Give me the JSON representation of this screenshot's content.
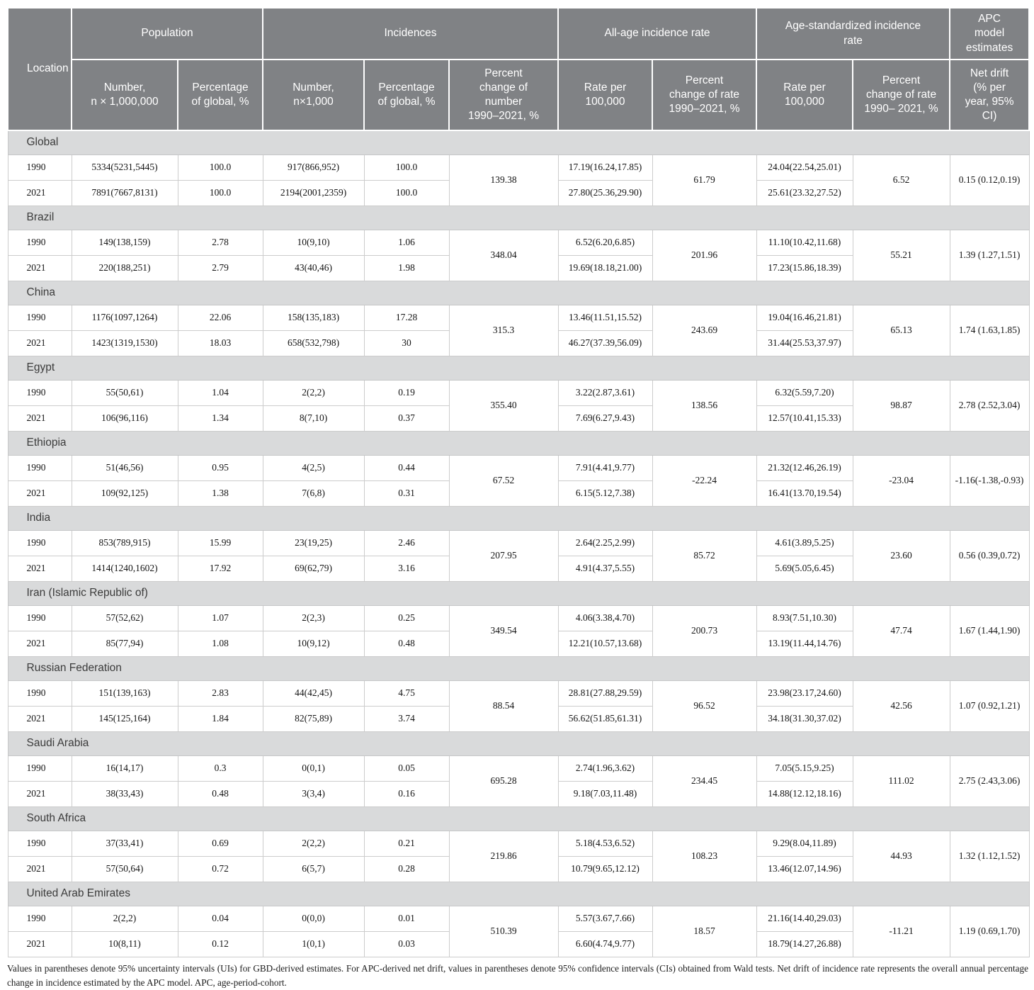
{
  "colors": {
    "header_bg": "#808285",
    "section_bg": "#d9dadb",
    "border": "#cccccc"
  },
  "header": {
    "location": "Location",
    "groups": {
      "population": "Population",
      "incidences": "Incidences",
      "all_age": "All-age incidence rate",
      "age_standardized": "Age-standardized incidence\nrate",
      "apc": "APC\nmodel\nestimates"
    },
    "columns": {
      "pop_number": "Number,\nn × 1,000,000",
      "pop_pct": "Percentage\nof global, %",
      "inc_number": "Number,\nn×1,000",
      "inc_pct": "Percentage\nof global, %",
      "change_number": "Percent\nchange of\nnumber\n1990–2021, %",
      "rate": "Rate per\n100,000",
      "change_rate": "Percent\nchange of rate\n1990–2021, %",
      "asr_rate": "Rate per\n100,000",
      "change_asr": "Percent\nchange of rate\n1990– 2021, %",
      "net_drift": "Net drift\n(% per\nyear, 95%\nCI)"
    }
  },
  "sections": [
    {
      "name": "Global",
      "rows": [
        {
          "year": "1990",
          "pop": "5334(5231,5445)",
          "pop_pct": "100.0",
          "inc": "917(866,952)",
          "inc_pct": "100.0",
          "rate": "17.19(16.24,17.85)",
          "asr": "24.04(22.54,25.01)"
        },
        {
          "year": "2021",
          "pop": "7891(7667,8131)",
          "pop_pct": "100.0",
          "inc": "2194(2001,2359)",
          "inc_pct": "100.0",
          "rate": "27.80(25.36,29.90)",
          "asr": "25.61(23.32,27.52)"
        }
      ],
      "change_number": "139.38",
      "change_rate": "61.79",
      "change_asr": "6.52",
      "net_drift": "0.15 (0.12,0.19)"
    },
    {
      "name": "Brazil",
      "rows": [
        {
          "year": "1990",
          "pop": "149(138,159)",
          "pop_pct": "2.78",
          "inc": "10(9,10)",
          "inc_pct": "1.06",
          "rate": "6.52(6.20,6.85)",
          "asr": "11.10(10.42,11.68)"
        },
        {
          "year": "2021",
          "pop": "220(188,251)",
          "pop_pct": "2.79",
          "inc": "43(40,46)",
          "inc_pct": "1.98",
          "rate": "19.69(18.18,21.00)",
          "asr": "17.23(15.86,18.39)"
        }
      ],
      "change_number": "348.04",
      "change_rate": "201.96",
      "change_asr": "55.21",
      "net_drift": "1.39 (1.27,1.51)"
    },
    {
      "name": "China",
      "rows": [
        {
          "year": "1990",
          "pop": "1176(1097,1264)",
          "pop_pct": "22.06",
          "inc": "158(135,183)",
          "inc_pct": "17.28",
          "rate": "13.46(11.51,15.52)",
          "asr": "19.04(16.46,21.81)"
        },
        {
          "year": "2021",
          "pop": "1423(1319,1530)",
          "pop_pct": "18.03",
          "inc": "658(532,798)",
          "inc_pct": "30",
          "rate": "46.27(37.39,56.09)",
          "asr": "31.44(25.53,37.97)"
        }
      ],
      "change_number": "315.3",
      "change_rate": "243.69",
      "change_asr": "65.13",
      "net_drift": "1.74 (1.63,1.85)"
    },
    {
      "name": "Egypt",
      "rows": [
        {
          "year": "1990",
          "pop": "55(50,61)",
          "pop_pct": "1.04",
          "inc": "2(2,2)",
          "inc_pct": "0.19",
          "rate": "3.22(2.87,3.61)",
          "asr": "6.32(5.59,7.20)"
        },
        {
          "year": "2021",
          "pop": "106(96,116)",
          "pop_pct": "1.34",
          "inc": "8(7,10)",
          "inc_pct": "0.37",
          "rate": "7.69(6.27,9.43)",
          "asr": "12.57(10.41,15.33)"
        }
      ],
      "change_number": "355.40",
      "change_rate": "138.56",
      "change_asr": "98.87",
      "net_drift": "2.78 (2.52,3.04)"
    },
    {
      "name": "Ethiopia",
      "rows": [
        {
          "year": "1990",
          "pop": "51(46,56)",
          "pop_pct": "0.95",
          "inc": "4(2,5)",
          "inc_pct": "0.44",
          "rate": "7.91(4.41,9.77)",
          "asr": "21.32(12.46,26.19)"
        },
        {
          "year": "2021",
          "pop": "109(92,125)",
          "pop_pct": "1.38",
          "inc": "7(6,8)",
          "inc_pct": "0.31",
          "rate": "6.15(5.12,7.38)",
          "asr": "16.41(13.70,19.54)"
        }
      ],
      "change_number": "67.52",
      "change_rate": "-22.24",
      "change_asr": "-23.04",
      "net_drift": "-1.16(-1.38,-0.93)"
    },
    {
      "name": "India",
      "rows": [
        {
          "year": "1990",
          "pop": "853(789,915)",
          "pop_pct": "15.99",
          "inc": "23(19,25)",
          "inc_pct": "2.46",
          "rate": "2.64(2.25,2.99)",
          "asr": "4.61(3.89,5.25)"
        },
        {
          "year": "2021",
          "pop": "1414(1240,1602)",
          "pop_pct": "17.92",
          "inc": "69(62,79)",
          "inc_pct": "3.16",
          "rate": "4.91(4.37,5.55)",
          "asr": "5.69(5.05,6.45)"
        }
      ],
      "change_number": "207.95",
      "change_rate": "85.72",
      "change_asr": "23.60",
      "net_drift": "0.56 (0.39,0.72)"
    },
    {
      "name": "Iran (Islamic Republic of)",
      "rows": [
        {
          "year": "1990",
          "pop": "57(52,62)",
          "pop_pct": "1.07",
          "inc": "2(2,3)",
          "inc_pct": "0.25",
          "rate": "4.06(3.38,4.70)",
          "asr": "8.93(7.51,10.30)"
        },
        {
          "year": "2021",
          "pop": "85(77,94)",
          "pop_pct": "1.08",
          "inc": "10(9,12)",
          "inc_pct": "0.48",
          "rate": "12.21(10.57,13.68)",
          "asr": "13.19(11.44,14.76)"
        }
      ],
      "change_number": "349.54",
      "change_rate": "200.73",
      "change_asr": "47.74",
      "net_drift": "1.67 (1.44,1.90)"
    },
    {
      "name": "Russian Federation",
      "rows": [
        {
          "year": "1990",
          "pop": "151(139,163)",
          "pop_pct": "2.83",
          "inc": "44(42,45)",
          "inc_pct": "4.75",
          "rate": "28.81(27.88,29.59)",
          "asr": "23.98(23.17,24.60)"
        },
        {
          "year": "2021",
          "pop": "145(125,164)",
          "pop_pct": "1.84",
          "inc": "82(75,89)",
          "inc_pct": "3.74",
          "rate": "56.62(51.85,61.31)",
          "asr": "34.18(31.30,37.02)"
        }
      ],
      "change_number": "88.54",
      "change_rate": "96.52",
      "change_asr": "42.56",
      "net_drift": "1.07 (0.92,1.21)"
    },
    {
      "name": "Saudi Arabia",
      "rows": [
        {
          "year": "1990",
          "pop": "16(14,17)",
          "pop_pct": "0.3",
          "inc": "0(0,1)",
          "inc_pct": "0.05",
          "rate": "2.74(1.96,3.62)",
          "asr": "7.05(5.15,9.25)"
        },
        {
          "year": "2021",
          "pop": "38(33,43)",
          "pop_pct": "0.48",
          "inc": "3(3,4)",
          "inc_pct": "0.16",
          "rate": "9.18(7.03,11.48)",
          "asr": "14.88(12.12,18.16)"
        }
      ],
      "change_number": "695.28",
      "change_rate": "234.45",
      "change_asr": "111.02",
      "net_drift": "2.75 (2.43,3.06)"
    },
    {
      "name": "South Africa",
      "rows": [
        {
          "year": "1990",
          "pop": "37(33,41)",
          "pop_pct": "0.69",
          "inc": "2(2,2)",
          "inc_pct": "0.21",
          "rate": "5.18(4.53,6.52)",
          "asr": "9.29(8.04,11.89)"
        },
        {
          "year": "2021",
          "pop": "57(50,64)",
          "pop_pct": "0.72",
          "inc": "6(5,7)",
          "inc_pct": "0.28",
          "rate": "10.79(9.65,12.12)",
          "asr": "13.46(12.07,14.96)"
        }
      ],
      "change_number": "219.86",
      "change_rate": "108.23",
      "change_asr": "44.93",
      "net_drift": "1.32 (1.12,1.52)"
    },
    {
      "name": "United Arab Emirates",
      "rows": [
        {
          "year": "1990",
          "pop": "2(2,2)",
          "pop_pct": "0.04",
          "inc": "0(0,0)",
          "inc_pct": "0.01",
          "rate": "5.57(3.67,7.66)",
          "asr": "21.16(14.40,29.03)"
        },
        {
          "year": "2021",
          "pop": "10(8,11)",
          "pop_pct": "0.12",
          "inc": "1(0,1)",
          "inc_pct": "0.03",
          "rate": "6.60(4.74,9.77)",
          "asr": "18.79(14.27,26.88)"
        }
      ],
      "change_number": "510.39",
      "change_rate": "18.57",
      "change_asr": "-11.21",
      "net_drift": "1.19 (0.69,1.70)"
    }
  ],
  "footnote": "Values in parentheses denote 95% uncertainty intervals (UIs) for GBD-derived estimates. For APC-derived net drift, values in parentheses denote 95% confidence intervals (CIs) obtained from Wald tests. Net drift of incidence rate represents the overall annual percentage change in incidence estimated by the APC model. APC, age-period-cohort."
}
